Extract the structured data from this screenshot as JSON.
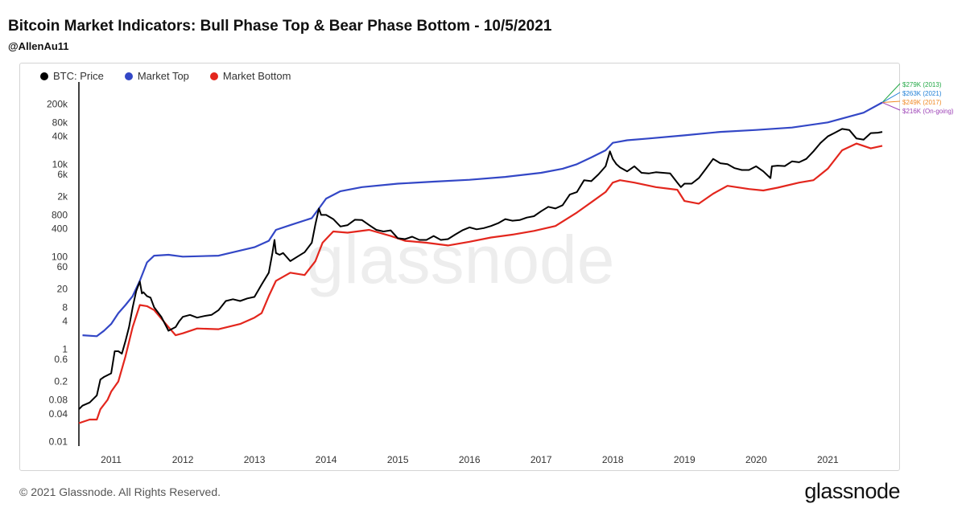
{
  "header": {
    "title": "Bitcoin Market Indicators: Bull Phase Top & Bear Phase Bottom - 10/5/2021",
    "subtitle": "@AllenAu11"
  },
  "footer": {
    "copyright": "© 2021 Glassnode. All Rights Reserved.",
    "brand": "glassnode",
    "watermark": "glassnode"
  },
  "side_labels": [
    {
      "text": "$279K (2013)",
      "color": "#22a845"
    },
    {
      "text": "$263K (2021)",
      "color": "#1f7fd6"
    },
    {
      "text": "$249K (2017)",
      "color": "#f08a24"
    },
    {
      "text": "$216K (On-going)",
      "color": "#9b3fb5"
    }
  ],
  "chart_data": {
    "type": "line",
    "title": "Bitcoin Market Indicators: Bull Phase Top & Bear Phase Bottom - 10/5/2021",
    "xlabel": "",
    "ylabel": "",
    "yscale": "log",
    "ylim": [
      0.008,
      600000
    ],
    "xlim": [
      2010.55,
      2021.85
    ],
    "x_ticks": [
      2011,
      2012,
      2013,
      2014,
      2015,
      2016,
      2017,
      2018,
      2019,
      2020,
      2021
    ],
    "x_tick_labels": [
      "2011",
      "2012",
      "2013",
      "2014",
      "2015",
      "2016",
      "2017",
      "2018",
      "2019",
      "2020",
      "2021"
    ],
    "y_ticks": [
      0.01,
      0.04,
      0.08,
      0.2,
      0.6,
      1,
      4,
      8,
      20,
      60,
      100,
      400,
      800,
      2000,
      6000,
      10000,
      40000,
      80000,
      200000
    ],
    "y_tick_labels": [
      "0.01",
      "0.04",
      "0.08",
      "0.2",
      "0.6",
      "1",
      "4",
      "8",
      "20",
      "60",
      "100",
      "400",
      "800",
      "2k",
      "6k",
      "10k",
      "40k",
      "80k",
      "200k"
    ],
    "legend_position": "top-left",
    "series": [
      {
        "name": "BTC: Price",
        "color": "#000000",
        "x": [
          2010.55,
          2010.6,
          2010.7,
          2010.8,
          2010.85,
          2010.9,
          2011.0,
          2011.05,
          2011.1,
          2011.15,
          2011.2,
          2011.25,
          2011.3,
          2011.35,
          2011.4,
          2011.43,
          2011.45,
          2011.5,
          2011.55,
          2011.6,
          2011.7,
          2011.8,
          2011.9,
          2011.95,
          2012.0,
          2012.1,
          2012.2,
          2012.3,
          2012.4,
          2012.5,
          2012.6,
          2012.7,
          2012.8,
          2012.9,
          2013.0,
          2013.1,
          2013.2,
          2013.25,
          2013.28,
          2013.3,
          2013.35,
          2013.4,
          2013.5,
          2013.6,
          2013.7,
          2013.8,
          2013.85,
          2013.9,
          2013.93,
          2014.0,
          2014.1,
          2014.2,
          2014.3,
          2014.4,
          2014.5,
          2014.6,
          2014.7,
          2014.8,
          2014.9,
          2015.0,
          2015.1,
          2015.2,
          2015.3,
          2015.4,
          2015.5,
          2015.6,
          2015.7,
          2015.8,
          2015.9,
          2016.0,
          2016.1,
          2016.2,
          2016.3,
          2016.4,
          2016.5,
          2016.6,
          2016.7,
          2016.8,
          2016.9,
          2017.0,
          2017.1,
          2017.2,
          2017.3,
          2017.4,
          2017.5,
          2017.6,
          2017.7,
          2017.8,
          2017.9,
          2017.96,
          2018.0,
          2018.05,
          2018.1,
          2018.2,
          2018.3,
          2018.4,
          2018.5,
          2018.6,
          2018.7,
          2018.8,
          2018.9,
          2018.95,
          2019.0,
          2019.1,
          2019.2,
          2019.3,
          2019.4,
          2019.5,
          2019.6,
          2019.7,
          2019.8,
          2019.9,
          2020.0,
          2020.1,
          2020.2,
          2020.22,
          2020.3,
          2020.4,
          2020.5,
          2020.6,
          2020.7,
          2020.8,
          2020.9,
          2021.0,
          2021.1,
          2021.2,
          2021.3,
          2021.4,
          2021.5,
          2021.6,
          2021.7,
          2021.76
        ],
        "values": [
          0.05,
          0.06,
          0.07,
          0.1,
          0.22,
          0.25,
          0.3,
          0.9,
          0.9,
          0.8,
          1.5,
          3.0,
          8.0,
          18.0,
          29.0,
          16.0,
          17.0,
          14.0,
          13.0,
          8.0,
          5.0,
          2.5,
          3.0,
          4.0,
          5.0,
          5.5,
          4.8,
          5.2,
          5.5,
          7.0,
          11.0,
          12.0,
          11.0,
          12.5,
          13.5,
          25.0,
          45.0,
          120.0,
          230.0,
          120.0,
          110.0,
          120.0,
          80.0,
          100.0,
          125.0,
          200.0,
          500.0,
          1100.0,
          800.0,
          800.0,
          650.0,
          450.0,
          480.0,
          630.0,
          620.0,
          480.0,
          380.0,
          350.0,
          370.0,
          250.0,
          240.0,
          270.0,
          230.0,
          230.0,
          280.0,
          230.0,
          240.0,
          300.0,
          370.0,
          430.0,
          390.0,
          415.0,
          460.0,
          530.0,
          650.0,
          600.0,
          620.0,
          700.0,
          750.0,
          960.0,
          1200.0,
          1100.0,
          1300.0,
          2200.0,
          2500.0,
          4500.0,
          4300.0,
          6000.0,
          9000.0,
          19000.0,
          13000.0,
          10000.0,
          8500.0,
          7000.0,
          9000.0,
          6500.0,
          6300.0,
          6700.0,
          6500.0,
          6300.0,
          4000.0,
          3200.0,
          3800.0,
          3800.0,
          5000.0,
          8000.0,
          13000.0,
          10500.0,
          10000.0,
          8200.0,
          7500.0,
          7500.0,
          9000.0,
          7000.0,
          5000.0,
          9000.0,
          9300.0,
          9100.0,
          11500.0,
          11000.0,
          13000.0,
          19000.0,
          29000.0,
          40000.0,
          48000.0,
          58000.0,
          55000.0,
          36000.0,
          34000.0,
          47000.0,
          48000.0,
          50000.0
        ]
      },
      {
        "name": "Market Top",
        "color": "#3347c6",
        "x": [
          2010.6,
          2010.8,
          2010.9,
          2011.0,
          2011.1,
          2011.2,
          2011.3,
          2011.4,
          2011.5,
          2011.6,
          2011.8,
          2012.0,
          2012.5,
          2013.0,
          2013.2,
          2013.3,
          2013.5,
          2013.8,
          2013.9,
          2014.0,
          2014.2,
          2014.5,
          2015.0,
          2015.5,
          2016.0,
          2016.5,
          2017.0,
          2017.3,
          2017.5,
          2017.7,
          2017.9,
          2018.0,
          2018.2,
          2018.5,
          2019.0,
          2019.5,
          2020.0,
          2020.5,
          2021.0,
          2021.5,
          2021.76
        ],
        "values": [
          2.0,
          1.9,
          2.5,
          3.5,
          6.0,
          9.0,
          14.0,
          30.0,
          75.0,
          105.0,
          110.0,
          100.0,
          105.0,
          160.0,
          220.0,
          380.0,
          480.0,
          680.0,
          1100.0,
          1800.0,
          2600.0,
          3200.0,
          3800.0,
          4200.0,
          4600.0,
          5300.0,
          6500.0,
          8000.0,
          10000.0,
          14000.0,
          20000.0,
          29000.0,
          33000.0,
          36000.0,
          42000.0,
          50000.0,
          55000.0,
          62000.0,
          80000.0,
          130000.0,
          216000.0
        ]
      },
      {
        "name": "Market Bottom",
        "color": "#e3261d",
        "x": [
          2010.55,
          2010.7,
          2010.8,
          2010.85,
          2010.95,
          2011.0,
          2011.1,
          2011.2,
          2011.3,
          2011.4,
          2011.5,
          2011.6,
          2011.8,
          2011.9,
          2012.0,
          2012.2,
          2012.5,
          2012.8,
          2013.0,
          2013.1,
          2013.2,
          2013.3,
          2013.5,
          2013.7,
          2013.85,
          2013.95,
          2014.1,
          2014.3,
          2014.6,
          2014.9,
          2015.1,
          2015.4,
          2015.7,
          2016.0,
          2016.3,
          2016.6,
          2016.9,
          2017.2,
          2017.5,
          2017.7,
          2017.9,
          2018.0,
          2018.1,
          2018.3,
          2018.6,
          2018.9,
          2019.0,
          2019.2,
          2019.4,
          2019.6,
          2019.9,
          2020.1,
          2020.3,
          2020.6,
          2020.8,
          2021.0,
          2021.2,
          2021.4,
          2021.6,
          2021.76
        ],
        "values": [
          0.025,
          0.03,
          0.03,
          0.05,
          0.08,
          0.12,
          0.2,
          0.7,
          3.0,
          9.0,
          8.5,
          7.0,
          3.0,
          2.0,
          2.2,
          2.8,
          2.7,
          3.5,
          4.8,
          6.0,
          14.0,
          30.0,
          45.0,
          40.0,
          80.0,
          200.0,
          350.0,
          330.0,
          380.0,
          280.0,
          220.0,
          200.0,
          175.0,
          210.0,
          260.0,
          300.0,
          360.0,
          460.0,
          900.0,
          1500.0,
          2500.0,
          4000.0,
          4500.0,
          4000.0,
          3200.0,
          2800.0,
          1600.0,
          1400.0,
          2300.0,
          3400.0,
          2900.0,
          2700.0,
          3100.0,
          4000.0,
          4500.0,
          8000.0,
          20000.0,
          28000.0,
          22000.0,
          25000.0
        ]
      }
    ]
  }
}
